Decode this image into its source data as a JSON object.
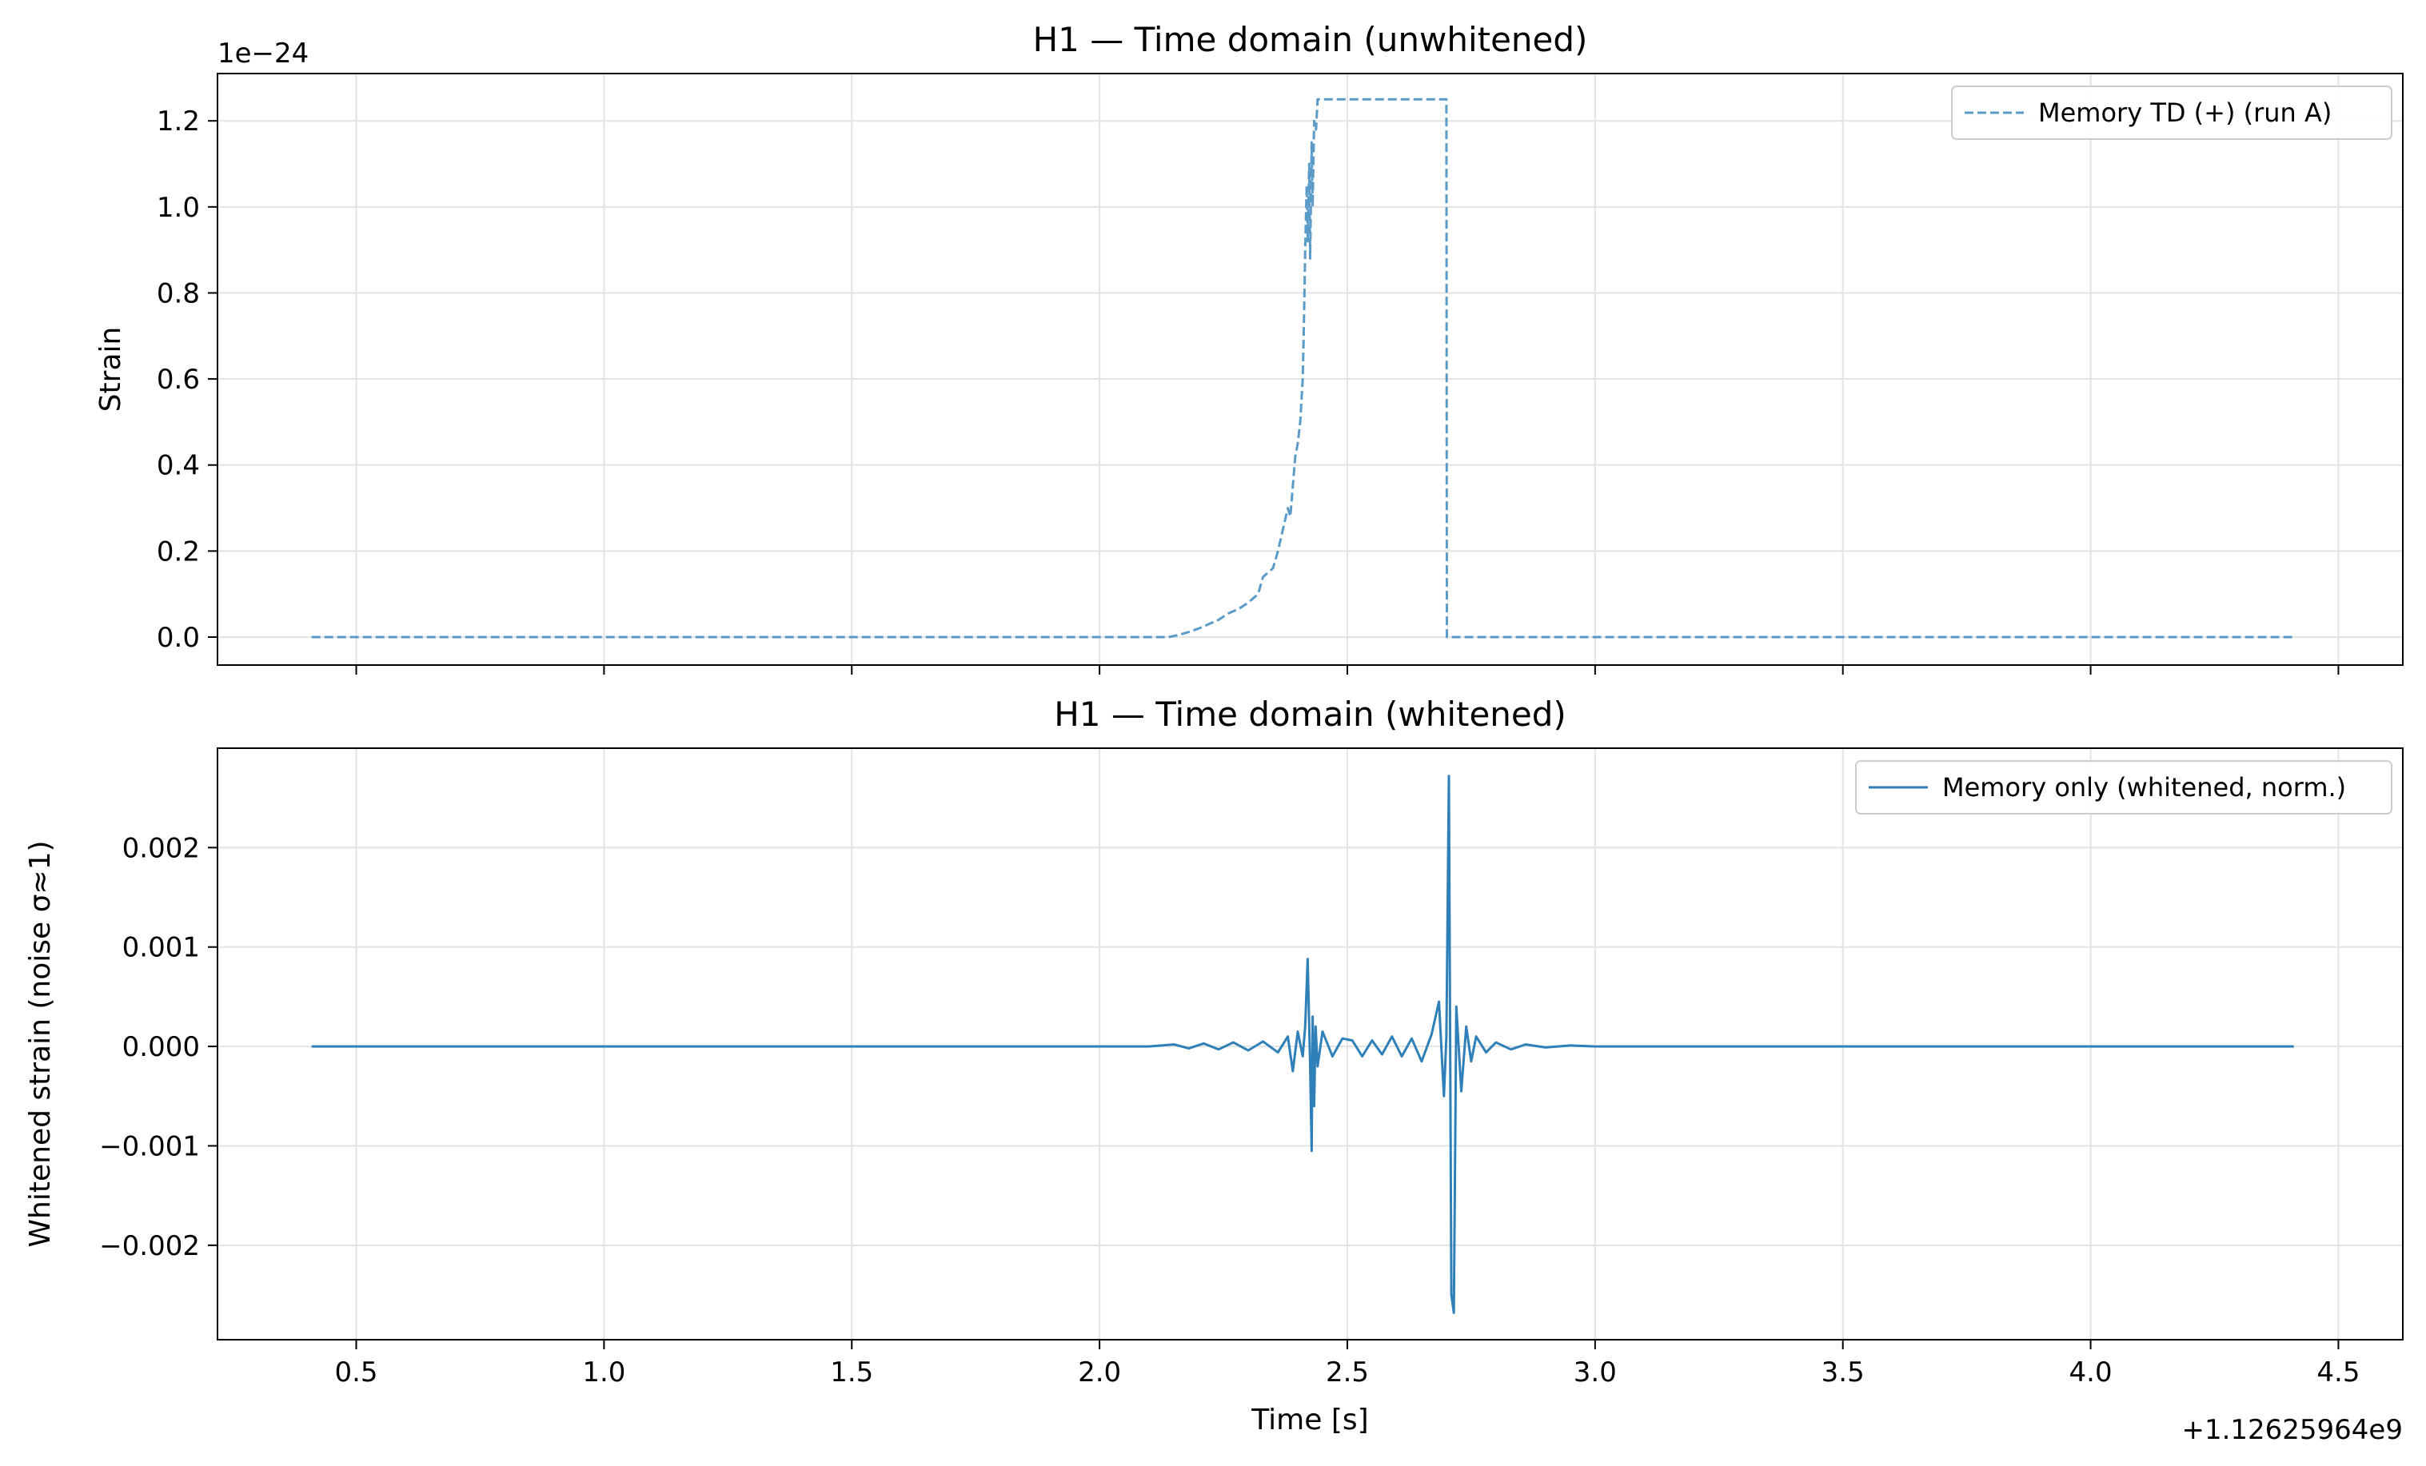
{
  "chart_data": [
    {
      "type": "line",
      "title": "H1 — Time domain (unwhitened)",
      "xlabel": "",
      "ylabel": "Strain",
      "offset_label": "1e−24",
      "xlim": [
        0.22,
        4.63
      ],
      "ylim": [
        -0.065,
        1.31
      ],
      "xticks": [
        0.5,
        1.0,
        1.5,
        2.0,
        2.5,
        3.0,
        3.5,
        4.0,
        4.5
      ],
      "yticks": [
        0.0,
        0.2,
        0.4,
        0.6,
        0.8,
        1.0,
        1.2
      ],
      "ytick_labels": [
        "0.0",
        "0.2",
        "0.4",
        "0.6",
        "0.8",
        "1.0",
        "1.2"
      ],
      "grid": true,
      "legend_position": "top-right",
      "series": [
        {
          "name": "Memory TD (+) (run A)",
          "style": "dashed",
          "color": "#5b9bc8",
          "x": [
            0.41,
            2.14,
            2.16,
            2.18,
            2.2,
            2.22,
            2.24,
            2.26,
            2.28,
            2.3,
            2.32,
            2.33,
            2.35,
            2.36,
            2.37,
            2.38,
            2.385,
            2.39,
            2.395,
            2.4,
            2.405,
            2.41,
            2.412,
            2.415,
            2.418,
            2.42,
            2.423,
            2.425,
            2.428,
            2.43,
            2.433,
            2.437,
            2.44,
            2.7,
            2.701,
            4.41
          ],
          "y": [
            0.0,
            0.0,
            0.005,
            0.012,
            0.02,
            0.03,
            0.04,
            0.055,
            0.065,
            0.08,
            0.1,
            0.14,
            0.16,
            0.2,
            0.25,
            0.3,
            0.28,
            0.35,
            0.42,
            0.45,
            0.5,
            0.6,
            0.7,
            0.9,
            1.05,
            0.92,
            1.1,
            0.88,
            1.15,
            1.0,
            1.2,
            1.18,
            1.25,
            1.25,
            0.0,
            0.0
          ]
        }
      ]
    },
    {
      "type": "line",
      "title": "H1 — Time domain (whitened)",
      "xlabel": "Time [s]",
      "ylabel": "Whitened strain (noise σ≈1)",
      "offset_label": "+1.12625964e9",
      "xlim": [
        0.22,
        4.63
      ],
      "ylim": [
        -0.00295,
        0.003
      ],
      "xticks": [
        0.5,
        1.0,
        1.5,
        2.0,
        2.5,
        3.0,
        3.5,
        4.0,
        4.5
      ],
      "xtick_labels": [
        "0.5",
        "1.0",
        "1.5",
        "2.0",
        "2.5",
        "3.0",
        "3.5",
        "4.0",
        "4.5"
      ],
      "yticks": [
        -0.002,
        -0.001,
        0.0,
        0.001,
        0.002
      ],
      "ytick_labels": [
        "−0.002",
        "−0.001",
        "0.000",
        "0.001",
        "0.002"
      ],
      "grid": true,
      "legend_position": "top-right",
      "series": [
        {
          "name": "Memory only (whitened, norm.)",
          "style": "solid",
          "color": "#2f7fb8",
          "x": [
            0.41,
            2.1,
            2.15,
            2.18,
            2.21,
            2.24,
            2.27,
            2.3,
            2.33,
            2.36,
            2.38,
            2.39,
            2.4,
            2.41,
            2.415,
            2.42,
            2.425,
            2.428,
            2.43,
            2.433,
            2.436,
            2.44,
            2.45,
            2.47,
            2.49,
            2.51,
            2.53,
            2.55,
            2.57,
            2.59,
            2.61,
            2.63,
            2.65,
            2.67,
            2.685,
            2.695,
            2.7,
            2.705,
            2.71,
            2.715,
            2.72,
            2.73,
            2.74,
            2.75,
            2.76,
            2.78,
            2.8,
            2.83,
            2.86,
            2.9,
            2.95,
            3.0,
            4.41
          ],
          "y": [
            0.0,
            0.0,
            2e-05,
            -2e-05,
            3e-05,
            -3e-05,
            4e-05,
            -4e-05,
            5e-05,
            -6e-05,
            0.0001,
            -0.00025,
            0.00015,
            -0.0001,
            0.0002,
            0.00088,
            -0.0002,
            -0.00105,
            0.0003,
            -0.0006,
            0.0002,
            -0.0002,
            0.00015,
            -0.0001,
            8e-05,
            6e-05,
            -0.0001,
            6e-05,
            -8e-05,
            0.0001,
            -0.0001,
            8e-05,
            -0.00015,
            0.00012,
            0.00045,
            -0.0005,
            0.0001,
            0.00272,
            -0.0025,
            -0.00268,
            0.0004,
            -0.00045,
            0.0002,
            -0.00015,
            0.0001,
            -6e-05,
            4e-05,
            -3e-05,
            2e-05,
            -1e-05,
            1e-05,
            0.0,
            0.0
          ]
        }
      ]
    }
  ]
}
